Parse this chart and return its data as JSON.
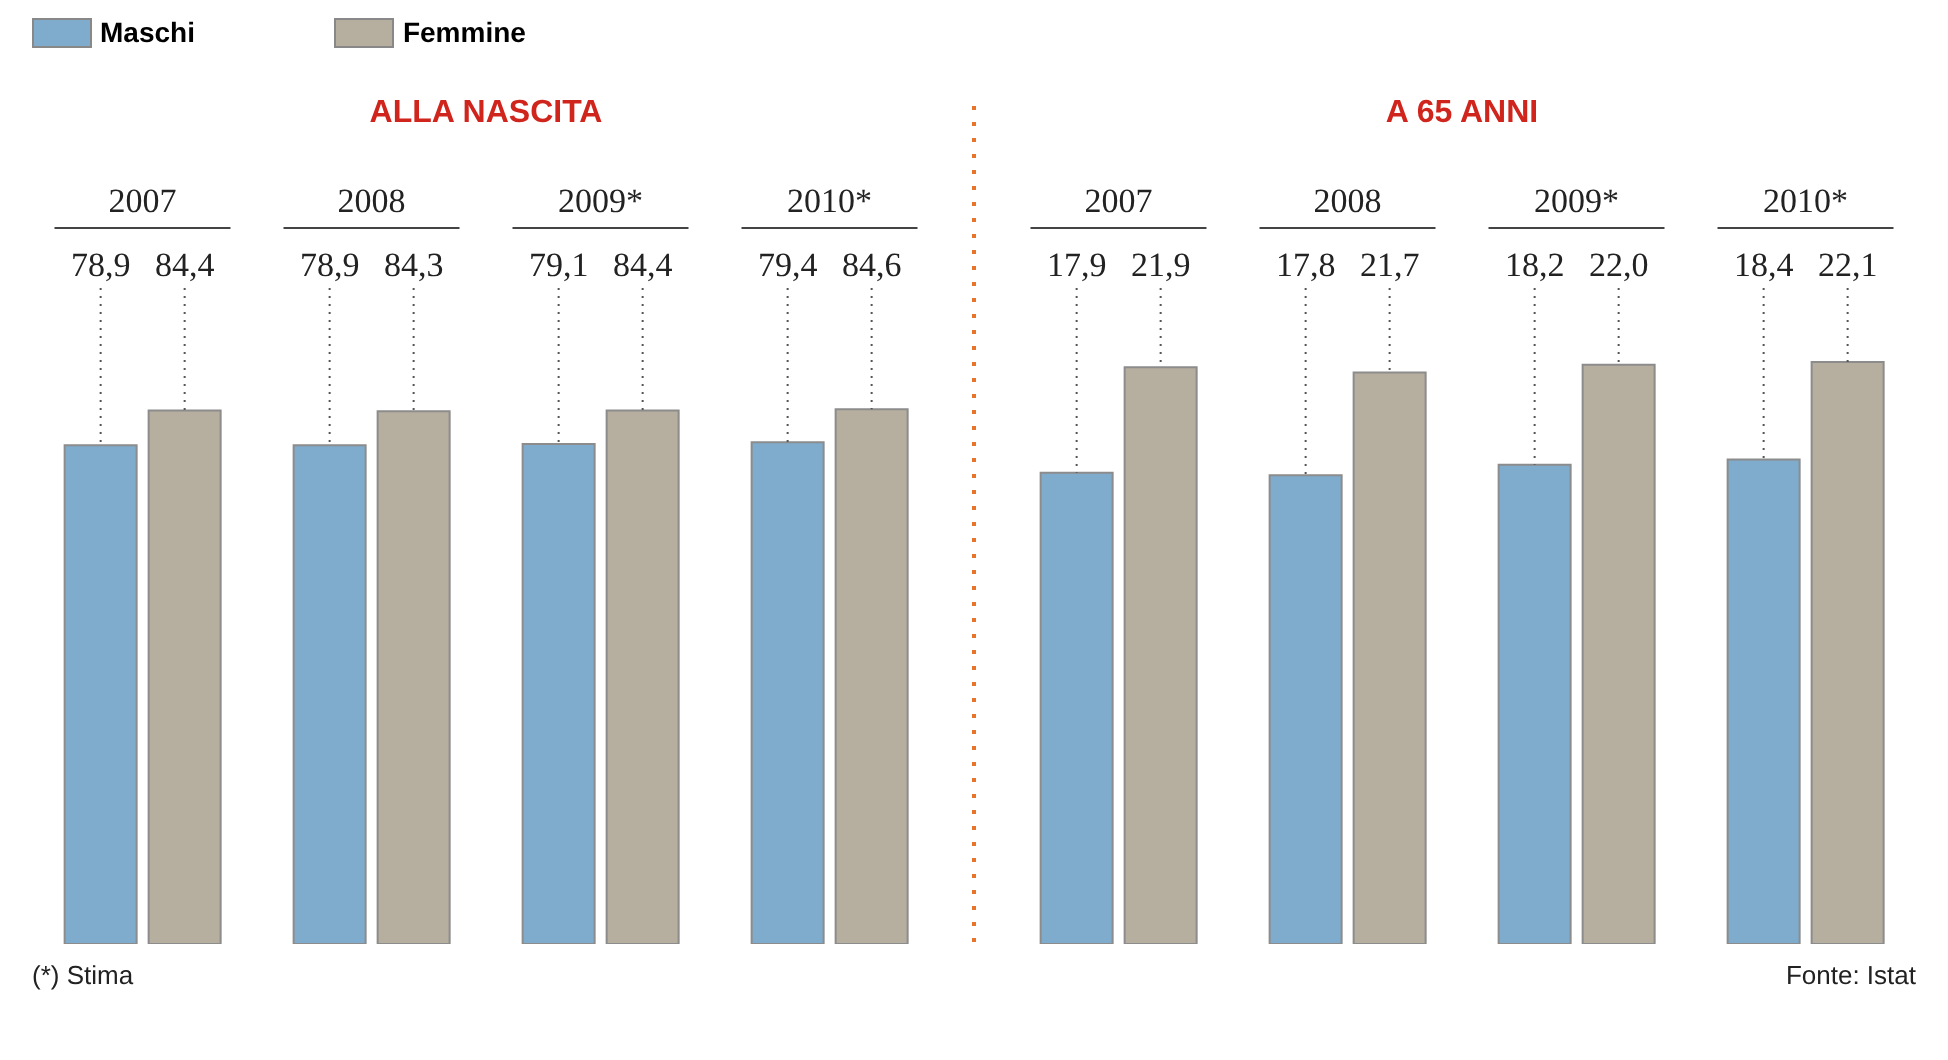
{
  "chart_data": [
    {
      "type": "bar",
      "title": "ALLA NASCITA",
      "categories": [
        "2007",
        "2008",
        "2009*",
        "2010*"
      ],
      "series": [
        {
          "name": "Maschi",
          "color": "#7fabcc",
          "values": [
            78.9,
            78.9,
            79.1,
            79.4
          ],
          "value_labels": [
            "78,9",
            "78,9",
            "79,1",
            "79,4"
          ]
        },
        {
          "name": "Femmine",
          "color": "#b6ae9f",
          "values": [
            84.4,
            84.3,
            84.4,
            84.6
          ],
          "value_labels": [
            "84,4",
            "84,3",
            "84,4",
            "84,6"
          ]
        }
      ],
      "tick_labels": "x",
      "legend": "top left",
      "annotations": [
        "(*) Stima"
      ]
    },
    {
      "type": "bar",
      "title": "A 65 ANNI",
      "categories": [
        "2007",
        "2008",
        "2009*",
        "2010*"
      ],
      "series": [
        {
          "color": "#7fabcc",
          "values": [
            17.9,
            17.8,
            18.2,
            18.4
          ],
          "value_labels": [
            "17,9",
            "17,8",
            "18,2",
            "18,4"
          ]
        },
        {
          "color": "#b6ae9f",
          "values": [
            21.9,
            21.7,
            22.0,
            22.1
          ],
          "value_labels": [
            "21,9",
            "21,7",
            "22,0",
            "22,1"
          ]
        }
      ],
      "tick_labels": "x",
      "annotations": [
        "Fonte: Istat"
      ]
    }
  ]
}
